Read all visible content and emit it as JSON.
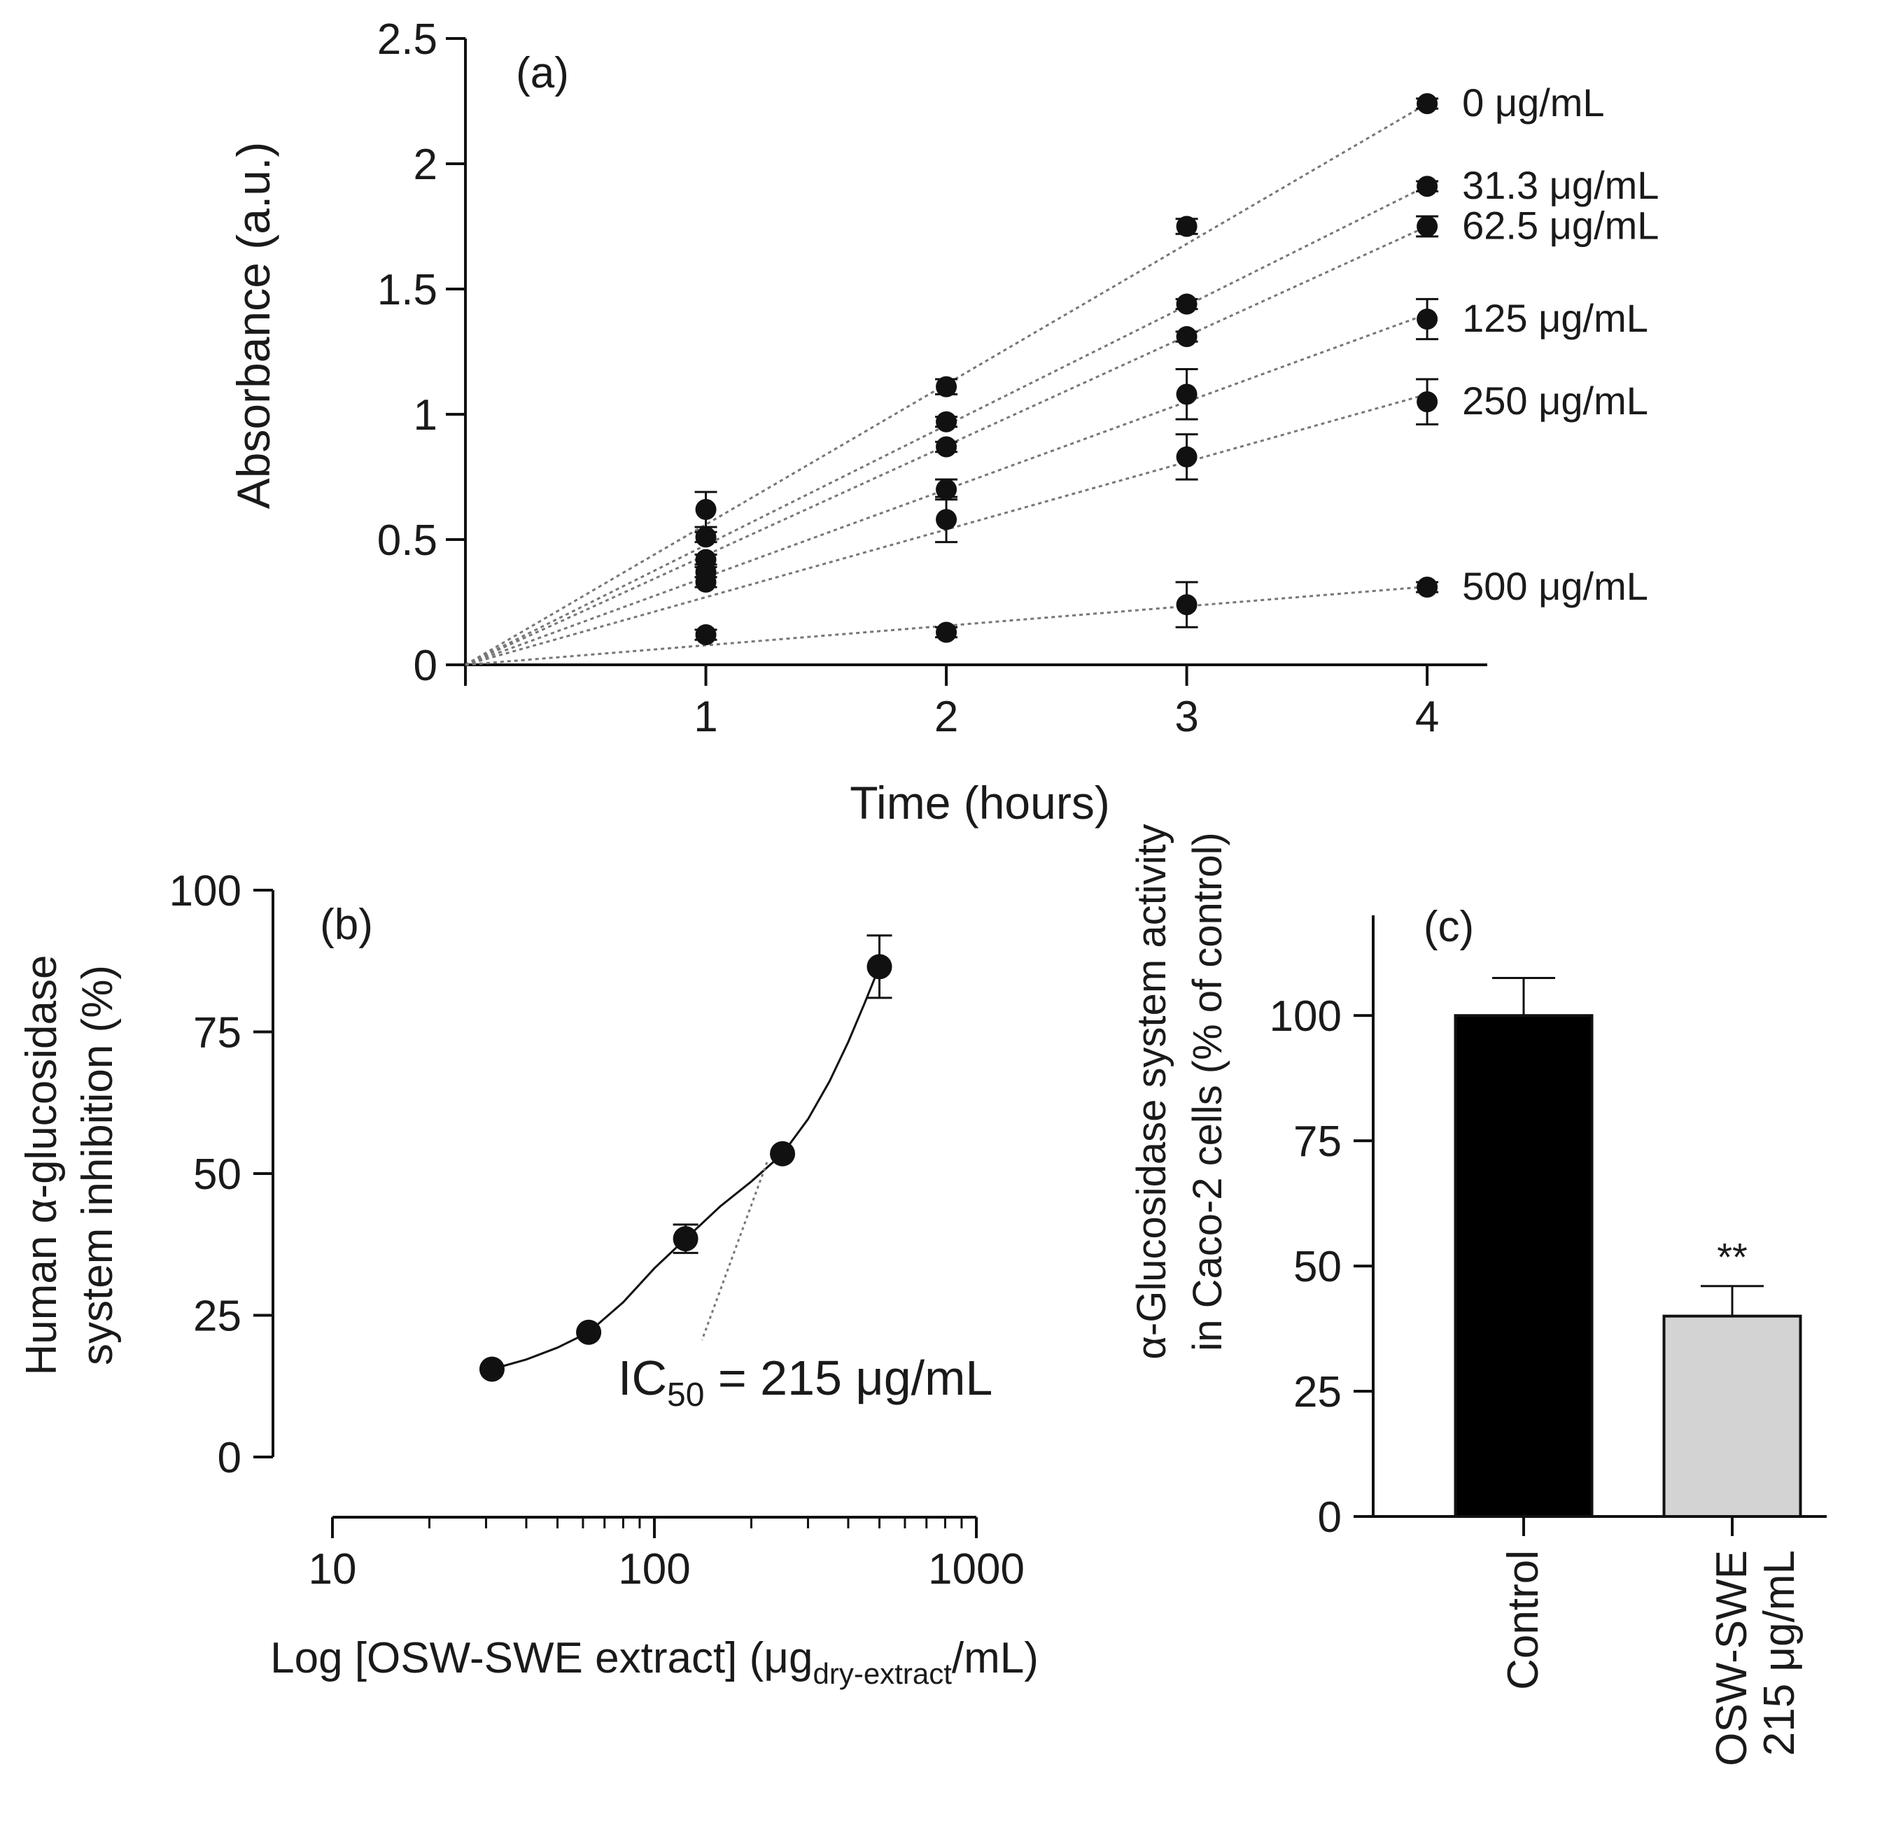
{
  "figure": {
    "colors": {
      "ink": "#111111",
      "dotted": "#777777",
      "control_bar": "#000000",
      "treated_bar": "#d3d3d3"
    }
  },
  "chart_data": [
    {
      "id": "a",
      "type": "scatter",
      "panel_label": "(a)",
      "title": "",
      "xlabel": "Time (hours)",
      "ylabel": "Absorbance (a.u.)",
      "xlim": [
        0,
        4.25
      ],
      "ylim": [
        0,
        2.5
      ],
      "xticks": [
        1,
        2,
        3,
        4
      ],
      "xtick_labels": [
        "1",
        "2",
        "3",
        "4"
      ],
      "yticks": [
        0,
        0.5,
        1,
        1.5,
        2,
        2.5
      ],
      "ytick_labels": [
        "0",
        "0.5",
        "1",
        "1.5",
        "2",
        "2.5"
      ],
      "fit": "linear through origin (dotted)",
      "series": [
        {
          "name": "0 μg/mL",
          "x": [
            1,
            2,
            3,
            4
          ],
          "y": [
            0.62,
            1.11,
            1.75,
            2.24
          ],
          "err": [
            0.07,
            0.03,
            0.03,
            0.02
          ],
          "slope": 0.56
        },
        {
          "name": "31.3 μg/mL",
          "x": [
            1,
            2,
            3,
            4
          ],
          "y": [
            0.51,
            0.97,
            1.44,
            1.91
          ],
          "err": [
            0.02,
            0.02,
            0.02,
            0.02
          ],
          "slope": 0.478
        },
        {
          "name": "62.5 μg/mL",
          "x": [
            1,
            2,
            3,
            4
          ],
          "y": [
            0.42,
            0.87,
            1.31,
            1.75
          ],
          "err": [
            0.02,
            0.02,
            0.02,
            0.04
          ],
          "slope": 0.4375
        },
        {
          "name": "125 μg/mL",
          "x": [
            1,
            2,
            3,
            4
          ],
          "y": [
            0.37,
            0.7,
            1.08,
            1.38
          ],
          "err": [
            0.02,
            0.04,
            0.1,
            0.08
          ],
          "slope": 0.35
        },
        {
          "name": "250 μg/mL",
          "x": [
            1,
            2,
            3,
            4
          ],
          "y": [
            0.33,
            0.58,
            0.83,
            1.05
          ],
          "err": [
            0.02,
            0.09,
            0.09,
            0.09
          ],
          "slope": 0.27
        },
        {
          "name": "500 μg/mL",
          "x": [
            1,
            2,
            3,
            4
          ],
          "y": [
            0.12,
            0.13,
            0.24,
            0.31
          ],
          "err": [
            0.02,
            0.02,
            0.09,
            0.02
          ],
          "slope": 0.078
        }
      ]
    },
    {
      "id": "b",
      "type": "scatter",
      "panel_label": "(b)",
      "title": "",
      "xlabel": "Log [OSW-SWE extract] (μg",
      "xlabel_sub": "dry-extract",
      "xlabel_end": "/mL)",
      "ylabel_line1": "Human α-glucosidase",
      "ylabel_line2": "system inhibition (%)",
      "xscale": "log",
      "xlim": [
        10,
        1000
      ],
      "ylim": [
        0,
        100
      ],
      "xticks": [
        10,
        100,
        1000
      ],
      "xtick_labels": [
        "10",
        "100",
        "1000"
      ],
      "yticks": [
        0,
        25,
        50,
        75,
        100
      ],
      "ytick_labels": [
        "0",
        "25",
        "50",
        "75",
        "100"
      ],
      "x": [
        31.3,
        62.5,
        125,
        250,
        500
      ],
      "y": [
        15.5,
        22,
        38.5,
        53.5,
        86.5
      ],
      "err": [
        1,
        1,
        2.5,
        1,
        5.5
      ],
      "fit_curve_x": [
        31.3,
        40,
        50,
        62.5,
        80,
        100,
        125,
        160,
        200,
        250,
        300,
        350,
        400,
        450,
        500
      ],
      "fit_curve_y": [
        15.5,
        17.2,
        19.3,
        22,
        27.3,
        33.3,
        38.5,
        44.2,
        48.6,
        53.5,
        59.6,
        66.3,
        73.2,
        80.1,
        86.5
      ],
      "annotation": {
        "text_pre": "IC",
        "text_sub": "50",
        "text_post": " = 215 μg/mL",
        "x": 215,
        "y": 50
      }
    },
    {
      "id": "c",
      "type": "bar",
      "panel_label": "(c)",
      "title": "",
      "ylabel_line1": "α-Glucosidase system activity",
      "ylabel_line2": "in Caco-2 cells (% of control)",
      "categories": [
        "Control",
        "OSW-SWE 215 μg/mL"
      ],
      "category_lines": [
        [
          "Control"
        ],
        [
          "OSW-SWE",
          "215 μg/mL"
        ]
      ],
      "values": [
        100,
        40
      ],
      "err": [
        7.5,
        6
      ],
      "significance": [
        "",
        "**"
      ],
      "ylim": [
        0,
        120
      ],
      "yticks": [
        0,
        25,
        50,
        75,
        100
      ],
      "ytick_labels": [
        "0",
        "25",
        "50",
        "75",
        "100"
      ]
    }
  ]
}
